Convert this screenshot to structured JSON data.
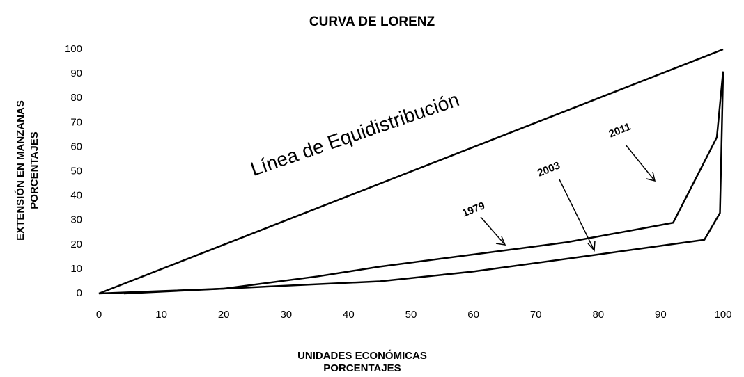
{
  "chart_data": {
    "type": "line",
    "title": "CURVA DE LORENZ",
    "xlabel": [
      "UNIDADES ECONÓMICAS",
      "PORCENTAJES"
    ],
    "ylabel": [
      "EXTENSIÓN EN MANZANAS",
      "PORCENTAJES"
    ],
    "series": [
      {
        "name": "Línea de Equidistribución",
        "color": "#000000",
        "x": [
          0,
          100
        ],
        "values": [
          0,
          100
        ]
      },
      {
        "name": "1979",
        "color": "#000000",
        "x": [
          0,
          10,
          20,
          35,
          45,
          60,
          75,
          92,
          99,
          100
        ],
        "values": [
          0,
          1,
          2,
          7,
          11,
          16,
          21,
          29,
          64,
          91
        ]
      },
      {
        "name": "2003",
        "color": "#000000",
        "x": [
          4,
          20,
          45,
          60,
          80,
          97,
          99.5,
          100
        ],
        "values": [
          0,
          2,
          5,
          9,
          16,
          22,
          33,
          90
        ]
      }
    ],
    "annotations": [
      "2011"
    ],
    "xlim": [
      0,
      100
    ],
    "xticks": [
      0,
      10,
      20,
      30,
      40,
      50,
      60,
      70,
      80,
      90,
      100
    ],
    "ylim": [
      0,
      100
    ],
    "yticks": [
      0,
      10,
      20,
      30,
      40,
      50,
      60,
      70,
      80,
      90,
      100
    ],
    "grid": false
  }
}
